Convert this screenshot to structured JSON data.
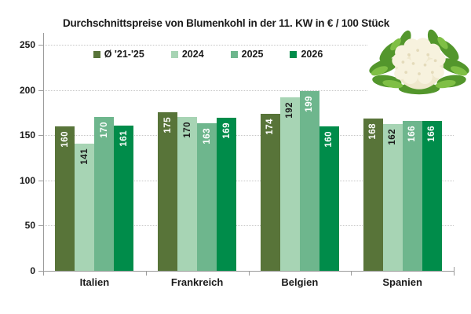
{
  "title": "Durchschnittspreise von Blumenkohl in der 11. KW in € / 100 Stück",
  "chart_data": {
    "type": "bar",
    "title": "Durchschnittspreise von Blumenkohl in der 11. KW in € / 100 Stück",
    "categories": [
      "Italien",
      "Frankreich",
      "Belgien",
      "Spanien"
    ],
    "series": [
      {
        "name": "Ø '21-'25",
        "color": "#587439",
        "label_color": "#ffffff",
        "values": [
          160,
          175,
          174,
          168
        ]
      },
      {
        "name": "2024",
        "color": "#a7d4b4",
        "label_color": "#1b1b1b",
        "values": [
          141,
          170,
          192,
          162
        ]
      },
      {
        "name": "2025",
        "color": "#6eb68d",
        "label_color": "#ffffff",
        "values": [
          170,
          163,
          199,
          166
        ]
      },
      {
        "name": "2026",
        "color": "#008c4a",
        "label_color": "#ffffff",
        "values": [
          161,
          169,
          160,
          166
        ]
      }
    ],
    "xlabel": "",
    "ylabel": "",
    "ylim": [
      0,
      250
    ],
    "yticks": [
      0,
      50,
      100,
      150,
      200,
      250
    ],
    "grid": "horizontal-dotted",
    "legend_position": "top-center",
    "value_labels": "rotated-90-inside-bar-top"
  },
  "decoration": {
    "cauliflower_image": "cauliflower head photo, top-right corner"
  },
  "colors": {
    "axis": "#9b9b9b",
    "gridline": "#c6c6c6",
    "text": "#1b1b1b",
    "background": "#ffffff"
  }
}
